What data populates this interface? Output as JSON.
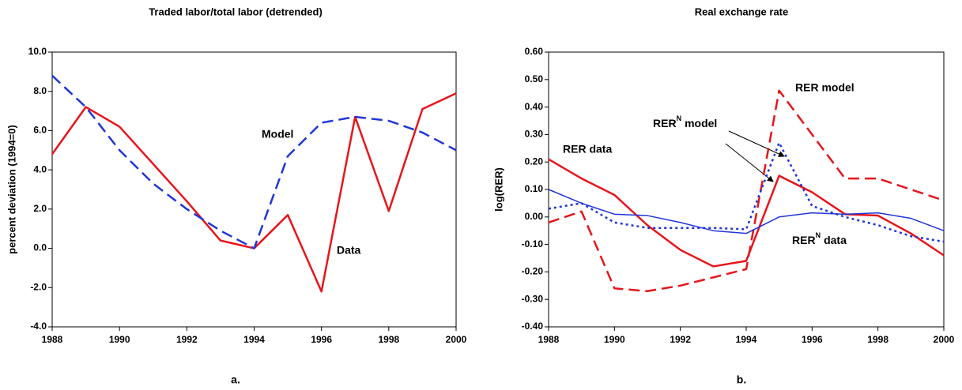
{
  "chart_data": [
    {
      "type": "line",
      "title": "Traded labor/total labor (detrended)",
      "y_label": "percent deviation (1994=0)",
      "caption": "a.",
      "x": [
        1988,
        1989,
        1990,
        1991,
        1992,
        1993,
        1994,
        1995,
        1996,
        1997,
        1998,
        1999,
        2000
      ],
      "xlim": [
        1988,
        2000
      ],
      "xticks": [
        1988,
        1990,
        1992,
        1994,
        1996,
        1998,
        2000
      ],
      "ylim": [
        -4,
        10
      ],
      "yticks": [
        {
          "value": -4,
          "label": "-4.0"
        },
        {
          "value": -2,
          "label": "-2.0"
        },
        {
          "value": 0,
          "label": "0.0"
        },
        {
          "value": 2,
          "label": "2.0"
        },
        {
          "value": 4,
          "label": "4.0"
        },
        {
          "value": 6,
          "label": "6.0"
        },
        {
          "value": 8,
          "label": "8.0"
        },
        {
          "value": 10,
          "label": "10.0"
        }
      ],
      "series": [
        {
          "name": "Data",
          "color": "#e8141b",
          "style": "solid",
          "values": [
            4.8,
            7.2,
            6.2,
            4.3,
            2.4,
            0.4,
            0.0,
            1.7,
            -2.2,
            6.7,
            1.9,
            7.1,
            7.9
          ]
        },
        {
          "name": "Model",
          "color": "#1f35d6",
          "style": "dashed",
          "values": [
            8.8,
            7.2,
            5.0,
            3.3,
            2.0,
            0.9,
            0.0,
            4.7,
            6.4,
            6.7,
            6.5,
            5.9,
            5.0
          ]
        }
      ]
    },
    {
      "type": "line",
      "title": "Real exchange rate",
      "y_label": "log(RER)",
      "caption": "b.",
      "x": [
        1988,
        1989,
        1990,
        1991,
        1992,
        1993,
        1994,
        1995,
        1996,
        1997,
        1998,
        1999,
        2000
      ],
      "xlim": [
        1988,
        2000
      ],
      "xticks": [
        1988,
        1990,
        1992,
        1994,
        1996,
        1998,
        2000
      ],
      "ylim": [
        -0.4,
        0.6
      ],
      "yticks": [
        {
          "value": -0.4,
          "label": "-0.40"
        },
        {
          "value": -0.3,
          "label": "-0.30"
        },
        {
          "value": -0.2,
          "label": "-0.20"
        },
        {
          "value": -0.1,
          "label": "-0.10"
        },
        {
          "value": 0,
          "label": "0.00"
        },
        {
          "value": 0.1,
          "label": "0.10"
        },
        {
          "value": 0.2,
          "label": "0.20"
        },
        {
          "value": 0.3,
          "label": "0.30"
        },
        {
          "value": 0.4,
          "label": "0.40"
        },
        {
          "value": 0.5,
          "label": "0.50"
        },
        {
          "value": 0.6,
          "label": "0.60"
        }
      ],
      "series": [
        {
          "name": "RER data",
          "color": "#e8141b",
          "style": "solid",
          "values": [
            0.21,
            0.14,
            0.08,
            -0.03,
            -0.12,
            -0.18,
            -0.16,
            0.15,
            0.09,
            0.01,
            0.005,
            -0.06,
            -0.14
          ]
        },
        {
          "name": "RER model",
          "color": "#e8141b",
          "style": "dashed",
          "values": [
            -0.02,
            0.02,
            -0.26,
            -0.27,
            -0.25,
            -0.22,
            -0.19,
            0.46,
            0.3,
            0.14,
            0.14,
            0.1,
            0.06
          ]
        },
        {
          "name": [
            "RER",
            "N",
            "model"
          ],
          "color": "#1f35d6",
          "style": "dotted",
          "values": [
            0.03,
            0.05,
            -0.02,
            -0.04,
            -0.04,
            -0.04,
            -0.045,
            0.27,
            0.04,
            0.0,
            -0.03,
            -0.07,
            -0.09
          ]
        },
        {
          "name": [
            "RER",
            "N",
            "data"
          ],
          "color": "#1f35d6",
          "style": "thin",
          "values": [
            0.1,
            0.05,
            0.01,
            0.005,
            -0.02,
            -0.05,
            -0.06,
            0.0,
            0.015,
            0.01,
            0.015,
            -0.005,
            -0.05
          ]
        }
      ]
    }
  ]
}
